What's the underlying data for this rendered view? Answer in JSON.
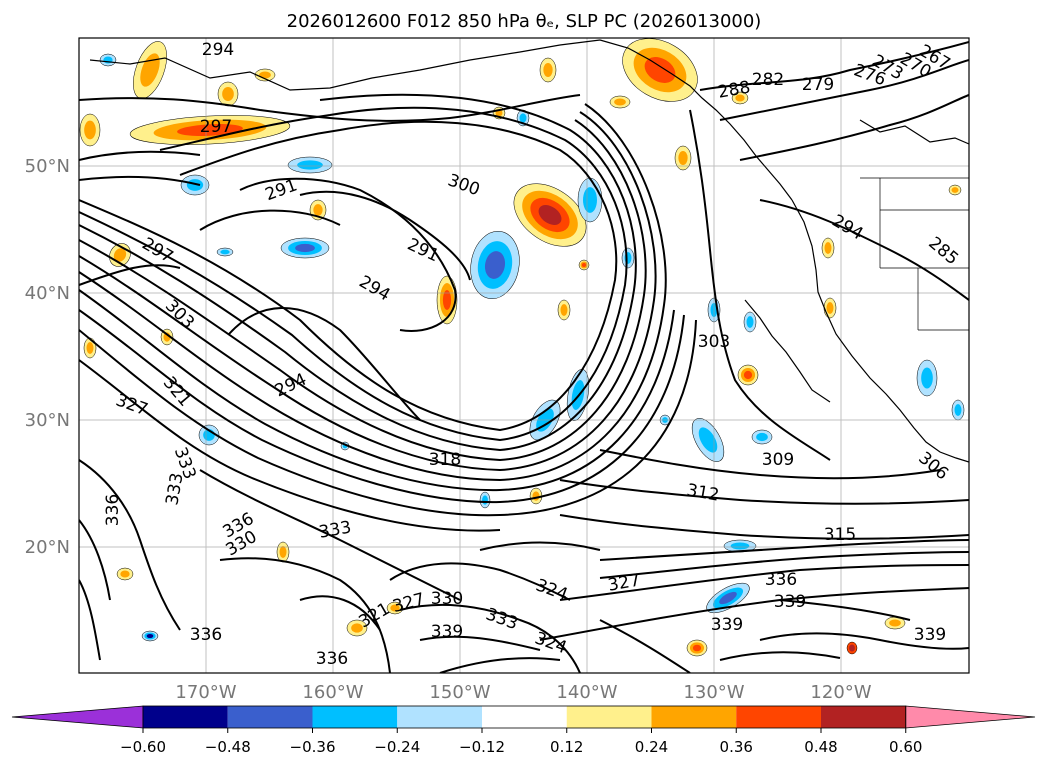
{
  "title": "2026012600 F012 850 hPa θₑ, SLP PC (2026013000)",
  "map": {
    "lat_labels": [
      "50°N",
      "40°N",
      "30°N",
      "20°N"
    ],
    "lon_labels": [
      "170°W",
      "160°W",
      "150°W",
      "140°W",
      "130°W",
      "120°W"
    ],
    "contour_labels": [
      "294",
      "297",
      "291",
      "300",
      "291",
      "294",
      "297",
      "303",
      "294",
      "321",
      "327",
      "333",
      "336",
      "333",
      "336",
      "330",
      "333",
      "318",
      "312",
      "309",
      "306",
      "315",
      "303",
      "282",
      "279",
      "276",
      "273",
      "270",
      "267",
      "288",
      "294",
      "285",
      "324",
      "327",
      "336",
      "339",
      "339",
      "330",
      "333",
      "339",
      "324",
      "327",
      "321",
      "336",
      "336",
      "339"
    ],
    "colors": {
      "contour": "#000000",
      "coast": "#000000",
      "grid": "#999999"
    }
  },
  "colorbar": {
    "colors": [
      "#9b30d9",
      "#00008b",
      "#3a5fcd",
      "#00bfff",
      "#b0e2ff",
      "#ffffff",
      "#fff08c",
      "#ffa500",
      "#ff4500",
      "#b22222",
      "#ff8aaa"
    ],
    "ticks": [
      "−0.60",
      "−0.48",
      "−0.36",
      "−0.24",
      "−0.12",
      "0.12",
      "0.24",
      "0.36",
      "0.48",
      "0.60"
    ]
  }
}
